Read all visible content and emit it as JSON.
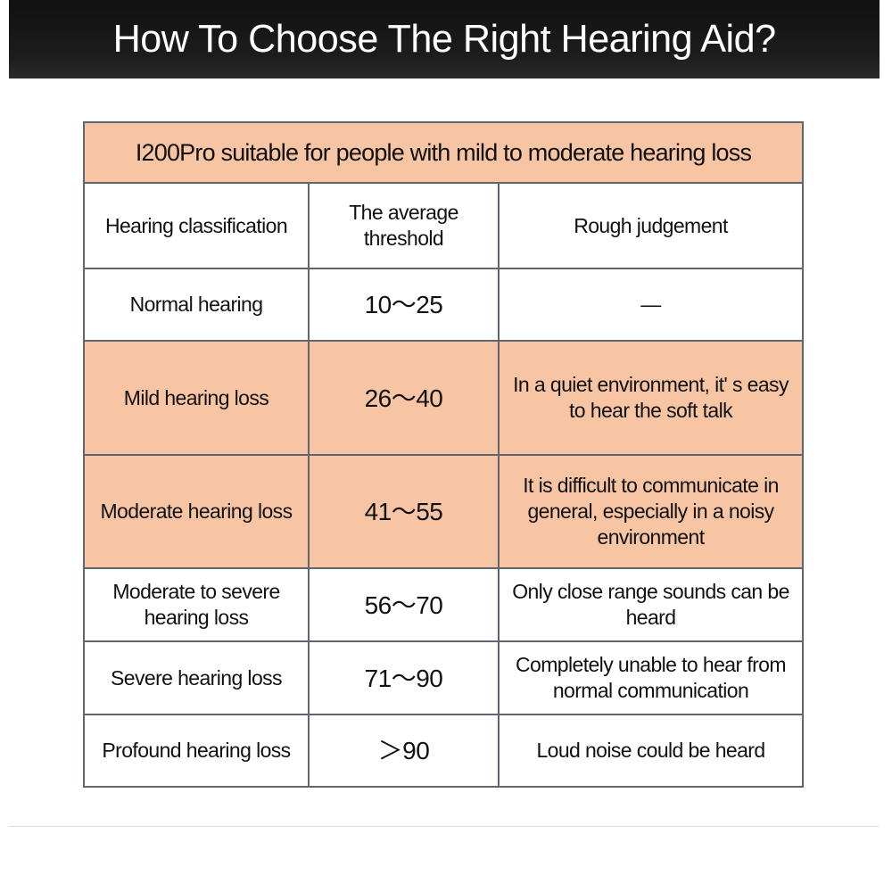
{
  "banner": {
    "title": "How To Choose The Right Hearing Aid?"
  },
  "table": {
    "caption": "I200Pro suitable for people with mild to moderate hearing loss",
    "highlight_color": "#f8c5a4",
    "headers": [
      "Hearing classification",
      "The average threshold",
      "Rough judgement"
    ],
    "rows": [
      {
        "classification": "Normal hearing",
        "threshold": "10～25",
        "judgement": "—",
        "highlighted": false
      },
      {
        "classification": "Mild hearing loss",
        "threshold": "26～40",
        "judgement": "In a quiet environment, it' s easy to hear the soft talk",
        "highlighted": true
      },
      {
        "classification": "Moderate hearing loss",
        "threshold": "41～55",
        "judgement": "It is difficult to communicate in general, especially in a noisy environment",
        "highlighted": true
      },
      {
        "classification": "Moderate to severe hearing loss",
        "threshold": "56～70",
        "judgement": "Only close range sounds can be heard",
        "highlighted": false
      },
      {
        "classification": "Severe hearing loss",
        "threshold": "71～90",
        "judgement": "Completely unable to hear from normal communication",
        "highlighted": false
      },
      {
        "classification": "Profound hearing loss",
        "threshold": "＞90",
        "judgement": "Loud noise could be heard",
        "highlighted": false
      }
    ]
  }
}
